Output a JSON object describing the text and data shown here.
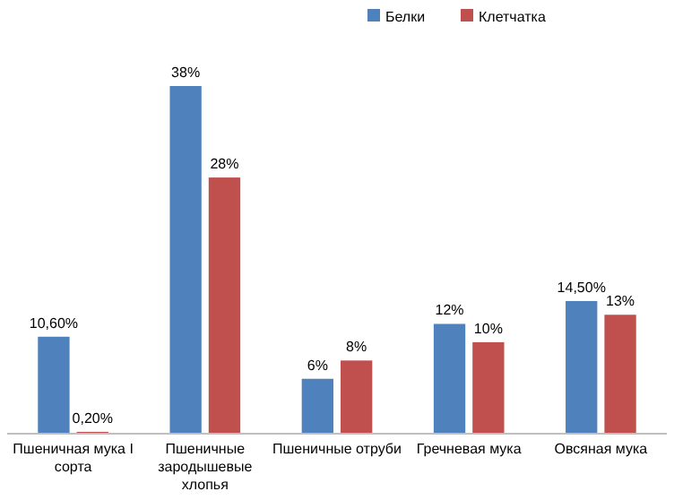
{
  "chart_data": {
    "type": "bar",
    "categories": [
      "Пшеничная мука I сорта",
      "Пшеничные зародышевые хлопья",
      "Пшеничные отруби",
      "Гречневая мука",
      "Овсяная мука"
    ],
    "series": [
      {
        "name": "Белки",
        "color": "#4f81bd",
        "values": [
          10.6,
          38,
          6,
          12,
          14.5
        ],
        "value_labels": [
          "10,60%",
          "38%",
          "6%",
          "12%",
          "14,50%"
        ]
      },
      {
        "name": "Клетчатка",
        "color": "#c0504d",
        "values": [
          0.2,
          28,
          8,
          10,
          13
        ],
        "value_labels": [
          "0,20%",
          "28%",
          "8%",
          "10%",
          "13%"
        ]
      }
    ],
    "legend": "top right"
  }
}
